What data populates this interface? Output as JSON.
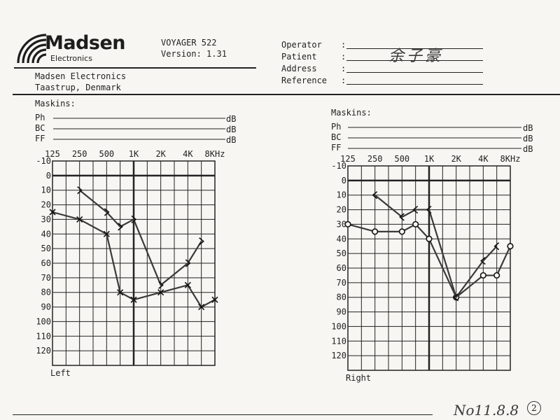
{
  "header": {
    "brand": "Madsen",
    "brand_sub": "Electronics",
    "device": "VOYAGER 522",
    "version": "Version: 1.31",
    "company": "Madsen Electronics",
    "location": "Taastrup, Denmark",
    "fields": [
      {
        "label": "Operator",
        "value": ""
      },
      {
        "label": "Patient",
        "value": "余子豪"
      },
      {
        "label": "Address",
        "value": ""
      },
      {
        "label": "Reference",
        "value": ""
      }
    ],
    "colon": ":"
  },
  "footer": {
    "handwritten_date": "No11.8.8",
    "circled_mark": "2"
  },
  "chart_data": [
    {
      "type": "line",
      "title": "Left",
      "masking_label": "Maskins:",
      "masking_rows": [
        {
          "label": "Ph",
          "unit": "dB"
        },
        {
          "label": "BC",
          "unit": "dB"
        },
        {
          "label": "FF",
          "unit": "dB"
        }
      ],
      "x_tick_labels": [
        "125",
        "250",
        "500",
        "1K",
        "2K",
        "4K",
        "8KHz"
      ],
      "y_tick_labels": [
        "-10",
        "0",
        "10",
        "20",
        "30",
        "40",
        "50",
        "60",
        "70",
        "80",
        "90",
        "100",
        "110",
        "120"
      ],
      "ylim": [
        -10,
        130
      ],
      "y_inverted": true,
      "grid": true,
      "series": [
        {
          "marker": "x",
          "values": [
            [
              0,
              25
            ],
            [
              1,
              30
            ],
            [
              2,
              40
            ],
            [
              2.5,
              80
            ],
            [
              3,
              85
            ],
            [
              4,
              80
            ],
            [
              5,
              75
            ],
            [
              5.5,
              90
            ],
            [
              6,
              85
            ]
          ]
        },
        {
          "marker": ">",
          "values": [
            [
              1,
              10
            ],
            [
              2,
              25
            ],
            [
              2.5,
              35
            ],
            [
              3,
              30
            ],
            [
              4,
              75
            ],
            [
              5,
              60
            ],
            [
              5.5,
              45
            ]
          ]
        }
      ]
    },
    {
      "type": "line",
      "title": "Right",
      "masking_label": "Maskins:",
      "masking_rows": [
        {
          "label": "Ph",
          "unit": "dB"
        },
        {
          "label": "BC",
          "unit": "dB"
        },
        {
          "label": "FF",
          "unit": "dB"
        }
      ],
      "x_tick_labels": [
        "125",
        "250",
        "500",
        "1K",
        "2K",
        "4K",
        "8KHz"
      ],
      "y_tick_labels": [
        "-10",
        "0",
        "10",
        "20",
        "30",
        "40",
        "50",
        "60",
        "70",
        "80",
        "90",
        "100",
        "110",
        "120"
      ],
      "ylim": [
        -10,
        130
      ],
      "y_inverted": true,
      "grid": true,
      "series": [
        {
          "marker": "o",
          "values": [
            [
              0,
              30
            ],
            [
              1,
              35
            ],
            [
              2,
              35
            ],
            [
              2.5,
              30
            ],
            [
              3,
              40
            ],
            [
              4,
              80
            ],
            [
              5,
              65
            ],
            [
              5.5,
              65
            ],
            [
              6,
              45
            ]
          ]
        },
        {
          "marker": "<",
          "values": [
            [
              1,
              10
            ],
            [
              2,
              25
            ],
            [
              2.5,
              20
            ],
            [
              3,
              20
            ],
            [
              4,
              80
            ],
            [
              5,
              55
            ],
            [
              5.5,
              45
            ]
          ]
        }
      ]
    }
  ]
}
